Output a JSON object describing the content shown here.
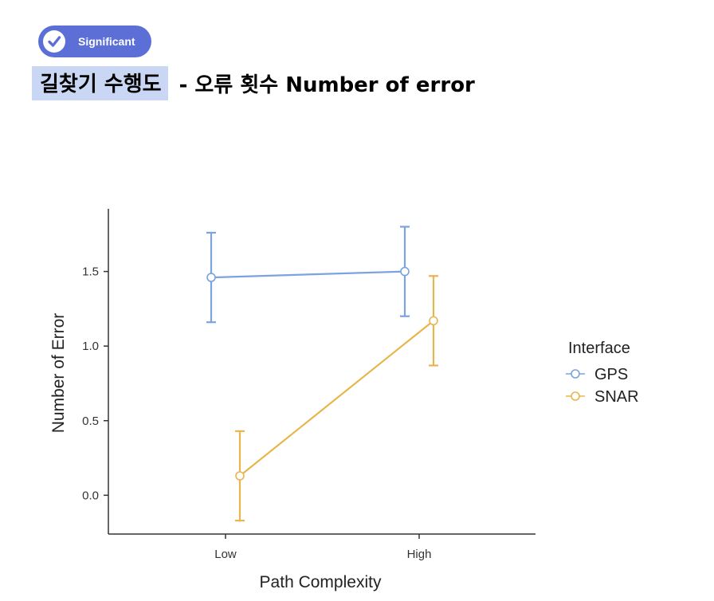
{
  "badge": {
    "label": "Significant",
    "icon": "check-icon",
    "color": "#5b6fd6"
  },
  "title": {
    "highlighted": "길찾기 수행도",
    "rest": "-  오류 횟수 Number of error",
    "highlight_color": "#c9d7f5"
  },
  "chart_data": {
    "type": "line",
    "x": [
      "Low",
      "High"
    ],
    "xlabel": "Path Complexity",
    "ylabel": "Number of Error",
    "ylim": [
      -0.26,
      1.92
    ],
    "yticks": [
      0.0,
      0.5,
      1.0,
      1.5
    ],
    "ytick_labels": [
      "0.0",
      "0.5",
      "1.0",
      "1.5"
    ],
    "grid": false,
    "legend": {
      "title": "Interface",
      "placement": "right"
    },
    "series": [
      {
        "name": "GPS",
        "color": "#7ba3df",
        "values": [
          1.46,
          1.5
        ],
        "error_low": [
          1.16,
          1.2
        ],
        "error_high": [
          1.76,
          1.8
        ],
        "dodge": -1
      },
      {
        "name": "SNAR",
        "color": "#e8b64c",
        "values": [
          0.13,
          1.17
        ],
        "error_low": [
          -0.17,
          0.87
        ],
        "error_high": [
          0.43,
          1.47
        ],
        "dodge": 1
      }
    ]
  }
}
